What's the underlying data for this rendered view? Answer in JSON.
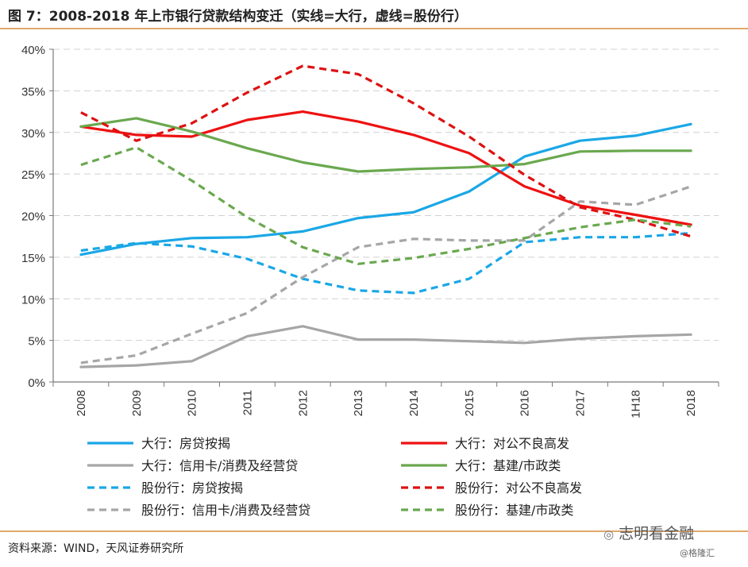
{
  "header": {
    "title": "图 7：2008-2018 年上市银行贷款结构变迁（实线=大行，虚线=股份行）"
  },
  "footer": {
    "source": "资料来源：WIND，天风证券研究所",
    "watermark": "志明看金融",
    "watermark_sub": "@格隆汇"
  },
  "chart_data": {
    "type": "line",
    "categories": [
      "2008",
      "2009",
      "2010",
      "2011",
      "2012",
      "2013",
      "2014",
      "2015",
      "2016",
      "2017",
      "1H18",
      "2018"
    ],
    "ylim": [
      0,
      40
    ],
    "yticks": [
      "0%",
      "5%",
      "10%",
      "15%",
      "20%",
      "25%",
      "30%",
      "35%",
      "40%"
    ],
    "grid": true,
    "legend_position": "bottom",
    "series": [
      {
        "name": "大行：房贷按揭",
        "color": "#1aa7e6",
        "dash": false,
        "values": [
          15.3,
          16.6,
          17.3,
          17.4,
          18.1,
          19.7,
          20.4,
          22.9,
          27.1,
          29.0,
          29.6,
          31.0
        ]
      },
      {
        "name": "大行：对公不良高发",
        "color": "#ee1111",
        "dash": false,
        "values": [
          30.7,
          29.7,
          29.5,
          31.5,
          32.5,
          31.3,
          29.7,
          27.5,
          23.5,
          21.2,
          20.1,
          18.9
        ]
      },
      {
        "name": "大行：信用卡/消费及经营贷",
        "color": "#a6a6a6",
        "dash": false,
        "values": [
          1.8,
          2.0,
          2.5,
          5.5,
          6.7,
          5.1,
          5.1,
          4.9,
          4.7,
          5.2,
          5.5,
          5.7
        ]
      },
      {
        "name": "大行：基建/市政类",
        "color": "#6aa84f",
        "dash": false,
        "values": [
          30.7,
          31.7,
          30.1,
          28.1,
          26.4,
          25.3,
          25.6,
          25.8,
          26.2,
          27.7,
          27.8,
          27.8
        ]
      },
      {
        "name": "股份行：房贷按揭",
        "color": "#1aa7e6",
        "dash": true,
        "values": [
          15.8,
          16.7,
          16.3,
          14.8,
          12.4,
          11.0,
          10.7,
          12.4,
          16.8,
          17.4,
          17.4,
          17.9
        ]
      },
      {
        "name": "股份行：对公不良高发",
        "color": "#dd1111",
        "dash": true,
        "values": [
          32.4,
          29.0,
          31.1,
          34.8,
          38.0,
          37.0,
          33.5,
          29.5,
          24.9,
          21.0,
          19.5,
          17.5
        ]
      },
      {
        "name": "股份行：信用卡/消费及经营贷",
        "color": "#a6a6a6",
        "dash": true,
        "values": [
          2.3,
          3.2,
          5.8,
          8.3,
          12.6,
          16.2,
          17.2,
          17.0,
          17.0,
          21.7,
          21.3,
          23.5
        ]
      },
      {
        "name": "股份行：基建/市政类",
        "color": "#6aa84f",
        "dash": true,
        "values": [
          26.1,
          28.2,
          24.2,
          19.8,
          16.2,
          14.2,
          14.9,
          16.0,
          17.3,
          18.6,
          19.5,
          18.7
        ]
      }
    ]
  }
}
